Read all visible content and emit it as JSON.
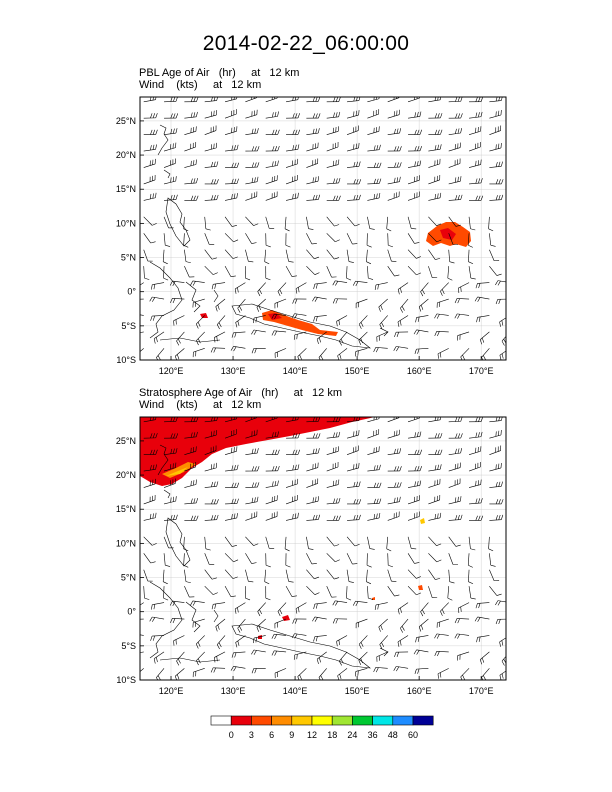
{
  "figure": {
    "title": "2014-02-22_06:00:00"
  },
  "panels": [
    {
      "title_line1": "PBL Age of Air   (hr)     at   12 km",
      "title_line2": "Wind    (kts)     at   12 km",
      "lat_labels": [
        "25°N",
        "20°N",
        "15°N",
        "10°N",
        "5°N",
        "0°",
        "5°S",
        "10°S"
      ],
      "lon_labels": [
        "120°E",
        "130°E",
        "140°E",
        "150°E",
        "160°E",
        "170°E"
      ]
    },
    {
      "title_line1": "Stratosphere Age of Air   (hr)     at   12 km",
      "title_line2": "Wind    (kts)     at   12 km",
      "lat_labels": [
        "25°N",
        "20°N",
        "15°N",
        "10°N",
        "5°N",
        "0°",
        "5°S",
        "10°S"
      ],
      "lon_labels": [
        "120°E",
        "130°E",
        "140°E",
        "150°E",
        "160°E",
        "170°E"
      ]
    }
  ],
  "colorbar": {
    "labels": [
      "0",
      "3",
      "6",
      "9",
      "12",
      "18",
      "24",
      "36",
      "48",
      "60"
    ],
    "colors": [
      "#ffffff",
      "#e8000b",
      "#ff4a00",
      "#ff8c00",
      "#ffc800",
      "#ffff00",
      "#a0e632",
      "#00c832",
      "#00e6e6",
      "#1e8cff",
      "#000096"
    ]
  },
  "map_extent": {
    "lon_min": 115,
    "lon_max": 174,
    "lat_min": -10,
    "lat_max": 28.5
  },
  "colors": {
    "land_outline": "#000000",
    "grid": "#c8c8c8",
    "barb": "#000000"
  }
}
